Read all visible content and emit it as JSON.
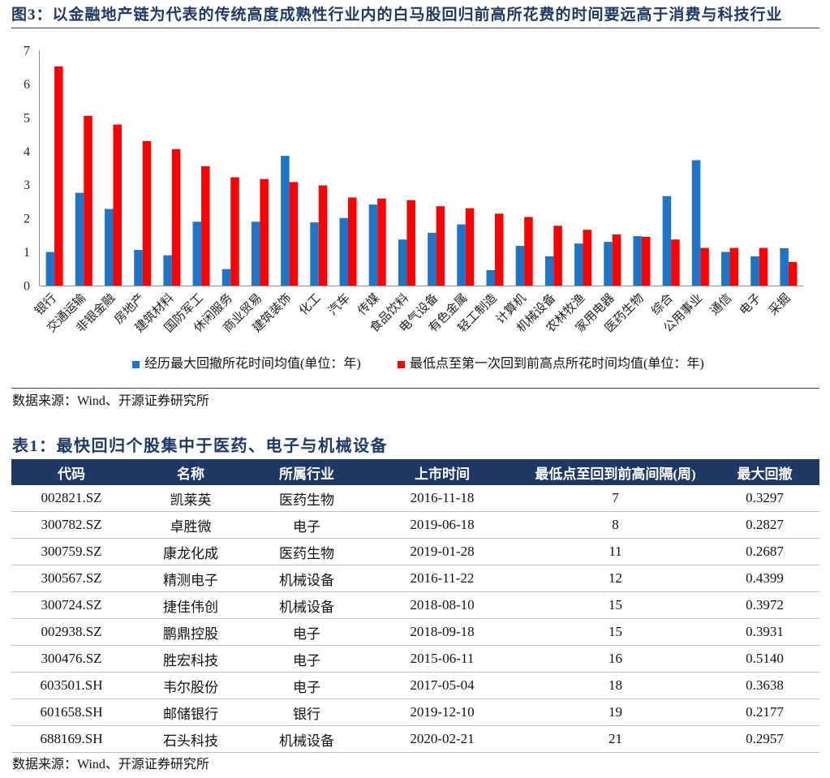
{
  "chart_data": {
    "type": "bar",
    "title": "图3：以金融地产链为代表的传统高度成熟性行业内的白马股回归前高所花费的时间要远高于消费与科技行业",
    "categories": [
      "银行",
      "交通运输",
      "非银金融",
      "房地产",
      "建筑材料",
      "国防军工",
      "休闲服务",
      "商业贸易",
      "建筑装饰",
      "化工",
      "汽车",
      "传媒",
      "食品饮料",
      "电气设备",
      "有色金属",
      "轻工制造",
      "计算机",
      "机械设备",
      "农林牧渔",
      "家用电器",
      "医药生物",
      "综合",
      "公用事业",
      "通信",
      "电子",
      "采掘"
    ],
    "series": [
      {
        "name": "经历最大回撤所花时间均值(单位：年)",
        "color": "#1E74C6",
        "values": [
          1.0,
          2.76,
          2.28,
          1.06,
          0.9,
          1.9,
          0.49,
          1.9,
          3.86,
          1.88,
          2.01,
          2.41,
          1.37,
          1.57,
          1.82,
          0.46,
          1.18,
          0.87,
          1.25,
          1.3,
          1.47,
          2.66,
          3.73,
          1.0,
          0.87,
          1.11
        ]
      },
      {
        "name": "最低点至第一次回到前高点所花时间均值(单位：年)",
        "color": "#FF0000",
        "values": [
          6.52,
          5.05,
          4.79,
          4.3,
          4.06,
          3.55,
          3.22,
          3.17,
          3.08,
          2.98,
          2.62,
          2.59,
          2.54,
          2.36,
          2.3,
          2.14,
          2.04,
          1.78,
          1.66,
          1.52,
          1.45,
          1.37,
          1.12,
          1.12,
          1.12,
          0.7
        ]
      }
    ],
    "ylim": [
      0,
      7
    ],
    "yticks": [
      0,
      1,
      2,
      3,
      4,
      5,
      6,
      7
    ],
    "grid": false,
    "legend": "bottom"
  },
  "chart_source": "数据来源：Wind、开源证券研究所",
  "table": {
    "title": "表1：最快回归个股集中于医药、电子与机械设备",
    "columns": [
      "代码",
      "名称",
      "所属行业",
      "上市时间",
      "最低点至回到前高间隔(周)",
      "最大回撤"
    ],
    "rows": [
      [
        "002821.SZ",
        "凯莱英",
        "医药生物",
        "2016-11-18",
        "7",
        "0.3297"
      ],
      [
        "300782.SZ",
        "卓胜微",
        "电子",
        "2019-06-18",
        "8",
        "0.2827"
      ],
      [
        "300759.SZ",
        "康龙化成",
        "医药生物",
        "2019-01-28",
        "11",
        "0.2687"
      ],
      [
        "300567.SZ",
        "精测电子",
        "机械设备",
        "2016-11-22",
        "12",
        "0.4399"
      ],
      [
        "300724.SZ",
        "捷佳伟创",
        "机械设备",
        "2018-08-10",
        "15",
        "0.3972"
      ],
      [
        "002938.SZ",
        "鹏鼎控股",
        "电子",
        "2018-09-18",
        "15",
        "0.3931"
      ],
      [
        "300476.SZ",
        "胜宏科技",
        "电子",
        "2015-06-11",
        "16",
        "0.5140"
      ],
      [
        "603501.SH",
        "韦尔股份",
        "电子",
        "2017-05-04",
        "18",
        "0.3638"
      ],
      [
        "601658.SH",
        "邮储银行",
        "银行",
        "2019-12-10",
        "19",
        "0.2177"
      ],
      [
        "688169.SH",
        "石头科技",
        "机械设备",
        "2020-02-21",
        "21",
        "0.2957"
      ]
    ],
    "source": "数据来源：Wind、开源证券研究所"
  }
}
